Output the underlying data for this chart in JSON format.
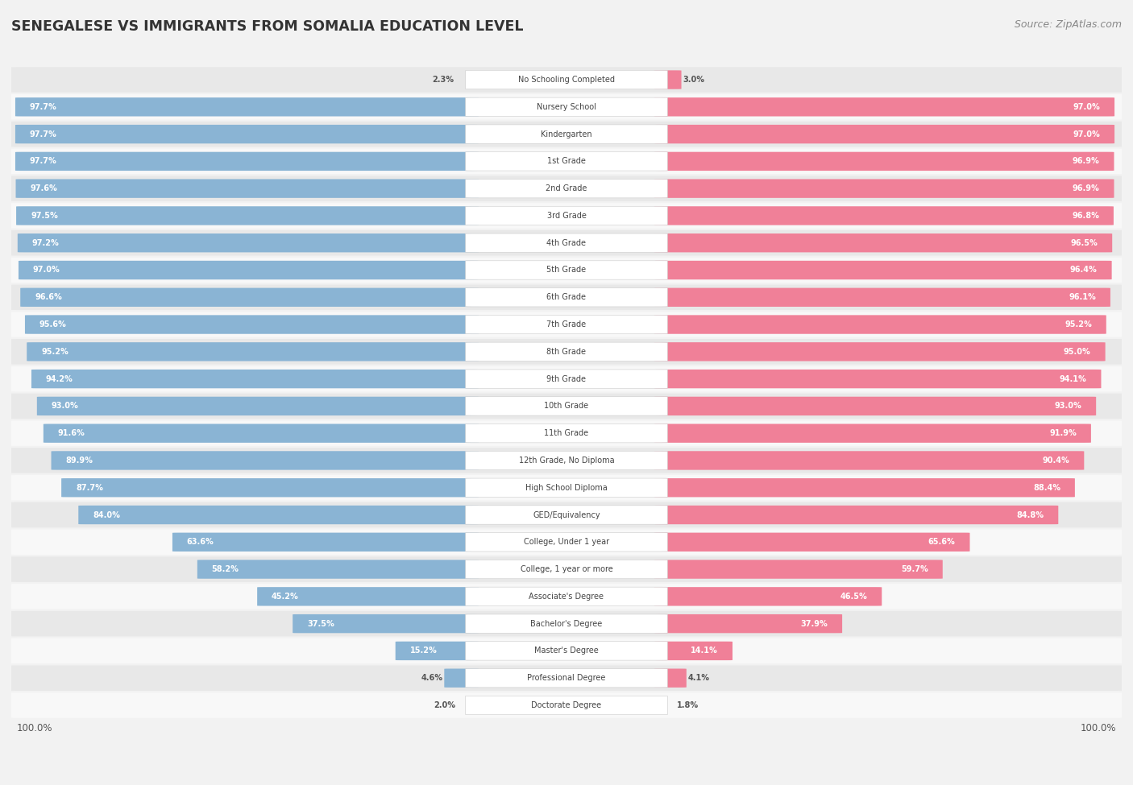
{
  "title": "SENEGALESE VS IMMIGRANTS FROM SOMALIA EDUCATION LEVEL",
  "source": "Source: ZipAtlas.com",
  "categories": [
    "No Schooling Completed",
    "Nursery School",
    "Kindergarten",
    "1st Grade",
    "2nd Grade",
    "3rd Grade",
    "4th Grade",
    "5th Grade",
    "6th Grade",
    "7th Grade",
    "8th Grade",
    "9th Grade",
    "10th Grade",
    "11th Grade",
    "12th Grade, No Diploma",
    "High School Diploma",
    "GED/Equivalency",
    "College, Under 1 year",
    "College, 1 year or more",
    "Associate's Degree",
    "Bachelor's Degree",
    "Master's Degree",
    "Professional Degree",
    "Doctorate Degree"
  ],
  "senegalese": [
    2.3,
    97.7,
    97.7,
    97.7,
    97.6,
    97.5,
    97.2,
    97.0,
    96.6,
    95.6,
    95.2,
    94.2,
    93.0,
    91.6,
    89.9,
    87.7,
    84.0,
    63.6,
    58.2,
    45.2,
    37.5,
    15.2,
    4.6,
    2.0
  ],
  "somalia": [
    3.0,
    97.0,
    97.0,
    96.9,
    96.9,
    96.8,
    96.5,
    96.4,
    96.1,
    95.2,
    95.0,
    94.1,
    93.0,
    91.9,
    90.4,
    88.4,
    84.8,
    65.6,
    59.7,
    46.5,
    37.9,
    14.1,
    4.1,
    1.8
  ],
  "blue_color": "#8ab4d4",
  "pink_color": "#f08098",
  "bg_color": "#f2f2f2",
  "row_bg_color": "#e8e8e8",
  "row_bg_color2": "#f8f8f8",
  "label_box_color": "#ffffff",
  "legend_blue": "Senegalese",
  "legend_pink": "Immigrants from Somalia"
}
